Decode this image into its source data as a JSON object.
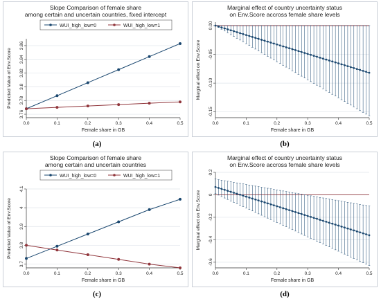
{
  "panel_labels": [
    "(a)",
    "(b)",
    "(c)",
    "(d)"
  ],
  "colors": {
    "blue": "#1a476f",
    "red": "#90353b",
    "axis": "#333333",
    "grid": "#dfe4ea",
    "ci": "#1a476f"
  },
  "chart_data": [
    {
      "type": "line",
      "title": [
        "Slope Comparison of female share",
        "among certain and uncertain countries, fixed intercept"
      ],
      "xlabel": "Female share in GB",
      "ylabel": "Predicted Value of Env.Score",
      "x": [
        0,
        0.1,
        0.2,
        0.3,
        0.4,
        0.5
      ],
      "xlim": [
        0,
        0.5
      ],
      "ylim": [
        3.755,
        3.87
      ],
      "xticks": [
        "0.0",
        "0.1",
        "0.2",
        "0.3",
        "0.4",
        "0.5"
      ],
      "yticks": [
        3.76,
        3.78,
        3.8,
        3.82,
        3.84,
        3.86
      ],
      "ytick_labels": [
        "3.76",
        "3.78",
        "3.8",
        "3.82",
        "3.84",
        "3.86"
      ],
      "grid": true,
      "legend_position": "top",
      "series": [
        {
          "name": "WUI_high_low=0",
          "values": [
            3.768,
            3.787,
            3.806,
            3.825,
            3.844,
            3.863
          ],
          "color": "#1a476f"
        },
        {
          "name": "WUI_high_low=1",
          "values": [
            3.768,
            3.77,
            3.772,
            3.774,
            3.776,
            3.778
          ],
          "color": "#90353b"
        }
      ]
    },
    {
      "type": "line",
      "title": [
        "Marginal effect of country uncertainty status",
        "on Env.Score accross female share levels"
      ],
      "xlabel": "Female share in GB",
      "ylabel": "Marginal effect on Env.Score",
      "xlim": [
        0,
        0.5
      ],
      "ylim": [
        -0.16,
        0.006
      ],
      "xticks": [
        "0.0",
        "0.1",
        "0.2",
        "0.3",
        "0.4",
        "0.5"
      ],
      "yticks": [
        0,
        -0.05,
        -0.1,
        -0.15
      ],
      "ytick_labels": [
        "0.00",
        "-0.05",
        "-0.10",
        "-0.15"
      ],
      "grid": true,
      "reference_line": 0,
      "estimate": {
        "x_start": 0,
        "x_end": 0.5,
        "y_start": 0,
        "y_end": -0.082,
        "points": 51
      },
      "ci_upper": {
        "y_start": 0,
        "y_end": 0
      },
      "ci_lower": {
        "y_start": 0,
        "y_end": -0.157
      }
    },
    {
      "type": "line",
      "title": [
        "Slope Comparison of female share",
        "among certain and uncertain countries"
      ],
      "xlabel": "Female share in GB",
      "ylabel": "Predicted Value of Env.Score",
      "x": [
        0,
        0.1,
        0.2,
        0.3,
        0.4,
        0.5
      ],
      "xlim": [
        0,
        0.5
      ],
      "ylim": [
        3.68,
        4.1
      ],
      "xticks": [
        "0.0",
        "0.1",
        "0.2",
        "0.3",
        "0.4",
        "0.5"
      ],
      "yticks": [
        3.7,
        3.8,
        3.9,
        4,
        4.1
      ],
      "ytick_labels": [
        "3.7",
        "3.8",
        "3.9",
        "4",
        "4.1"
      ],
      "grid": true,
      "legend_position": "top",
      "series": [
        {
          "name": "WUI_high_low=0",
          "values": [
            3.73,
            3.795,
            3.86,
            3.925,
            3.99,
            4.045
          ],
          "color": "#1a476f"
        },
        {
          "name": "WUI_high_low=1",
          "values": [
            3.8,
            3.775,
            3.75,
            3.725,
            3.7,
            3.68
          ],
          "color": "#90353b"
        }
      ]
    },
    {
      "type": "line",
      "title": [
        "Marginal effect of country uncertainty status",
        "on Env.Score accross female share levels"
      ],
      "xlabel": "Female share in GB",
      "ylabel": "Marginal effect on Env.Score",
      "xlim": [
        0,
        0.5
      ],
      "ylim": [
        -0.65,
        0.2
      ],
      "xticks": [
        "0.0",
        "0.1",
        "0.2",
        "0.3",
        "0.4",
        "0.5"
      ],
      "yticks": [
        0.2,
        0,
        -0.2,
        -0.4,
        -0.6
      ],
      "ytick_labels": [
        "0.2",
        "0",
        "-0.2",
        "-0.4",
        "-0.6"
      ],
      "grid": true,
      "reference_line": 0,
      "estimate": {
        "x_start": 0,
        "x_end": 0.5,
        "y_start": 0.07,
        "y_end": -0.36,
        "points": 51
      },
      "ci_upper": {
        "y_start": 0.14,
        "y_end": -0.1
      },
      "ci_lower": {
        "y_start": 0.01,
        "y_end": -0.63
      }
    }
  ]
}
